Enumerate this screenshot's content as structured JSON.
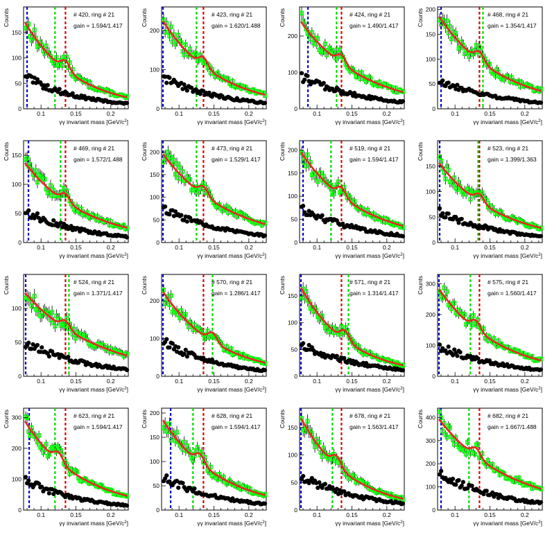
{
  "common": {
    "xlabel_prefix": "γγ invariant mass [GeV/c",
    "xlabel_sup": "2",
    "xlabel_suffix": "]",
    "ylabel": "Counts",
    "xlim": [
      0.075,
      0.225
    ],
    "xticks": [
      0.1,
      0.15,
      0.2
    ],
    "xtick_labels": [
      "0.1",
      "0.15",
      "0.2"
    ],
    "colors": {
      "data_green": "#00ff00",
      "fit_red": "#e8281e",
      "bg_black": "#000000",
      "line_blue": "#0000cc",
      "line_green": "#00dd00",
      "line_red": "#dd0000"
    }
  },
  "chart_data": [
    {
      "type": "scatter",
      "title": "# 420, ring # 21",
      "subtitle": "gain = 1.594/1.417",
      "ylim": [
        0,
        200
      ],
      "yticks": [
        0,
        50,
        100,
        150
      ],
      "fg_start": 175,
      "fg_end": 22,
      "bg_start": 65,
      "bg_end": 10,
      "peak": 0.135,
      "vlines": [
        {
          "x": 0.08,
          "color": "blue"
        },
        {
          "x": 0.12,
          "color": "green"
        },
        {
          "x": 0.135,
          "color": "red"
        }
      ]
    },
    {
      "type": "scatter",
      "title": "# 423, ring # 21",
      "subtitle": "gain = 1.620/1.488",
      "ylim": [
        0,
        260
      ],
      "yticks": [
        0,
        100,
        200
      ],
      "fg_start": 230,
      "fg_end": 35,
      "bg_start": 80,
      "bg_end": 15,
      "peak": 0.135,
      "vlines": [
        {
          "x": 0.077,
          "color": "blue"
        },
        {
          "x": 0.125,
          "color": "green"
        },
        {
          "x": 0.135,
          "color": "red"
        }
      ]
    },
    {
      "type": "scatter",
      "title": "# 424, ring # 21",
      "subtitle": "gain = 1.490/1.417",
      "ylim": [
        0,
        280
      ],
      "yticks": [
        0,
        100,
        200
      ],
      "fg_start": 245,
      "fg_end": 45,
      "bg_start": 90,
      "bg_end": 18,
      "peak": 0.135,
      "vlines": [
        {
          "x": 0.087,
          "color": "blue"
        },
        {
          "x": 0.128,
          "color": "green"
        },
        {
          "x": 0.135,
          "color": "red"
        }
      ]
    },
    {
      "type": "scatter",
      "title": "# 468, ring # 21",
      "subtitle": "gain = 1.354/1.417",
      "ylim": [
        0,
        205
      ],
      "yticks": [
        0,
        50,
        100,
        150,
        200
      ],
      "fg_start": 190,
      "fg_end": 35,
      "bg_start": 60,
      "bg_end": 12,
      "peak": 0.135,
      "vlines": [
        {
          "x": 0.08,
          "color": "blue"
        },
        {
          "x": 0.135,
          "color": "red"
        },
        {
          "x": 0.14,
          "color": "green"
        }
      ]
    },
    {
      "type": "scatter",
      "title": "# 469, ring # 21",
      "subtitle": "gain = 1.572/1.488",
      "ylim": [
        0,
        175
      ],
      "yticks": [
        0,
        50,
        100,
        150
      ],
      "fg_start": 140,
      "fg_end": 25,
      "bg_start": 55,
      "bg_end": 10,
      "peak": 0.135,
      "vlines": [
        {
          "x": 0.082,
          "color": "blue"
        },
        {
          "x": 0.128,
          "color": "green"
        },
        {
          "x": 0.135,
          "color": "red"
        }
      ]
    },
    {
      "type": "scatter",
      "title": "# 473, ring # 21",
      "subtitle": "gain = 1.529/1.417",
      "ylim": [
        0,
        225
      ],
      "yticks": [
        0,
        50,
        100,
        150,
        200
      ],
      "fg_start": 200,
      "fg_end": 40,
      "bg_start": 80,
      "bg_end": 15,
      "peak": 0.135,
      "vlines": [
        {
          "x": 0.077,
          "color": "blue"
        },
        {
          "x": 0.125,
          "color": "green"
        },
        {
          "x": 0.135,
          "color": "red"
        }
      ]
    },
    {
      "type": "scatter",
      "title": "# 519, ring # 21",
      "subtitle": "gain = 1.594/1.417",
      "ylim": [
        0,
        220
      ],
      "yticks": [
        0,
        50,
        100,
        150,
        200
      ],
      "fg_start": 200,
      "fg_end": 35,
      "bg_start": 75,
      "bg_end": 15,
      "peak": 0.135,
      "vlines": [
        {
          "x": 0.08,
          "color": "blue"
        },
        {
          "x": 0.12,
          "color": "green"
        },
        {
          "x": 0.135,
          "color": "red"
        }
      ]
    },
    {
      "type": "scatter",
      "title": "# 523, ring # 21",
      "subtitle": "gain = 1.399/1.363",
      "ylim": [
        0,
        200
      ],
      "yticks": [
        0,
        50,
        100,
        150
      ],
      "fg_start": 160,
      "fg_end": 28,
      "bg_start": 62,
      "bg_end": 12,
      "peak": 0.135,
      "vlines": [
        {
          "x": 0.078,
          "color": "blue"
        },
        {
          "x": 0.133,
          "color": "green"
        },
        {
          "x": 0.135,
          "color": "red"
        }
      ]
    },
    {
      "type": "scatter",
      "title": "# 524, ring # 21",
      "subtitle": "gain = 1.371/1.417",
      "ylim": [
        0,
        150
      ],
      "yticks": [
        0,
        50,
        100
      ],
      "fg_start": 125,
      "fg_end": 30,
      "bg_start": 50,
      "bg_end": 10,
      "peak": 0.135,
      "vlines": [
        {
          "x": 0.078,
          "color": "blue"
        },
        {
          "x": 0.135,
          "color": "red"
        },
        {
          "x": 0.14,
          "color": "green"
        }
      ]
    },
    {
      "type": "scatter",
      "title": "# 570, ring # 21",
      "subtitle": "gain = 1.286/1.417",
      "ylim": [
        0,
        270
      ],
      "yticks": [
        0,
        100,
        200
      ],
      "fg_start": 230,
      "fg_end": 35,
      "bg_start": 95,
      "bg_end": 15,
      "peak": 0.148,
      "vlines": [
        {
          "x": 0.077,
          "color": "blue"
        },
        {
          "x": 0.135,
          "color": "red"
        },
        {
          "x": 0.148,
          "color": "green"
        }
      ]
    },
    {
      "type": "scatter",
      "title": "# 571, ring # 21",
      "subtitle": "gain = 1.314/1.417",
      "ylim": [
        0,
        190
      ],
      "yticks": [
        0,
        50,
        100,
        150
      ],
      "fg_start": 170,
      "fg_end": 20,
      "bg_start": 60,
      "bg_end": 12,
      "peak": 0.14,
      "vlines": [
        {
          "x": 0.077,
          "color": "blue"
        },
        {
          "x": 0.135,
          "color": "red"
        },
        {
          "x": 0.145,
          "color": "green"
        }
      ]
    },
    {
      "type": "scatter",
      "title": "# 575, ring # 21",
      "subtitle": "gain = 1.560/1.417",
      "ylim": [
        0,
        330
      ],
      "yticks": [
        0,
        100,
        200,
        300
      ],
      "fg_start": 290,
      "fg_end": 50,
      "bg_start": 100,
      "bg_end": 20,
      "peak": 0.13,
      "vlines": [
        {
          "x": 0.077,
          "color": "blue"
        },
        {
          "x": 0.122,
          "color": "green"
        },
        {
          "x": 0.135,
          "color": "red"
        }
      ]
    },
    {
      "type": "scatter",
      "title": "# 623, ring # 21",
      "subtitle": "gain = 1.594/1.417",
      "ylim": [
        0,
        330
      ],
      "yticks": [
        0,
        100,
        200,
        300
      ],
      "fg_start": 295,
      "fg_end": 45,
      "bg_start": 100,
      "bg_end": 15,
      "peak": 0.125,
      "vlines": [
        {
          "x": 0.083,
          "color": "blue"
        },
        {
          "x": 0.12,
          "color": "green"
        },
        {
          "x": 0.135,
          "color": "red"
        }
      ]
    },
    {
      "type": "scatter",
      "title": "# 628, ring # 21",
      "subtitle": "gain = 1.594/1.417",
      "ylim": [
        0,
        210
      ],
      "yticks": [
        0,
        50,
        100,
        150,
        200
      ],
      "fg_start": 190,
      "fg_end": 30,
      "bg_start": 70,
      "bg_end": 12,
      "peak": 0.13,
      "vlines": [
        {
          "x": 0.088,
          "color": "blue"
        },
        {
          "x": 0.12,
          "color": "green"
        },
        {
          "x": 0.135,
          "color": "red"
        }
      ]
    },
    {
      "type": "scatter",
      "title": "# 678, ring # 21",
      "subtitle": "gain = 1.563/1.417",
      "ylim": [
        0,
        185
      ],
      "yticks": [
        0,
        50,
        100,
        150
      ],
      "fg_start": 172,
      "fg_end": 20,
      "bg_start": 62,
      "bg_end": 12,
      "peak": 0.128,
      "vlines": [
        {
          "x": 0.077,
          "color": "blue"
        },
        {
          "x": 0.122,
          "color": "green"
        },
        {
          "x": 0.135,
          "color": "red"
        }
      ]
    },
    {
      "type": "scatter",
      "title": "# 682, ring # 21",
      "subtitle": "gain = 1.667/1.488",
      "ylim": [
        0,
        440
      ],
      "yticks": [
        0,
        100,
        200,
        300,
        400
      ],
      "fg_start": 400,
      "fg_end": 90,
      "bg_start": 160,
      "bg_end": 30,
      "peak": 0.13,
      "vlines": [
        {
          "x": 0.08,
          "color": "blue"
        },
        {
          "x": 0.12,
          "color": "green"
        },
        {
          "x": 0.135,
          "color": "red"
        }
      ]
    }
  ]
}
